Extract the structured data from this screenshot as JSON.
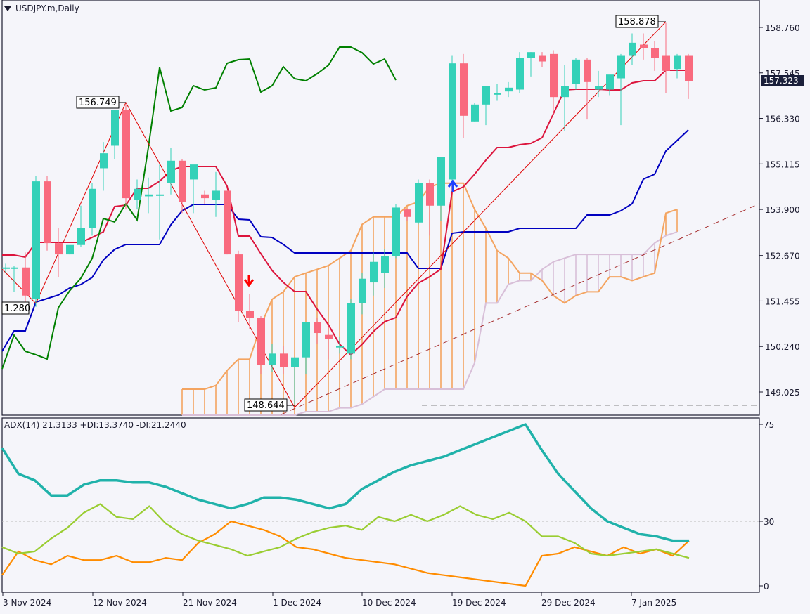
{
  "header": {
    "symbol_timeframe": "USDJPY.m,Daily",
    "menu_icon": "triangle-down-icon"
  },
  "price_axis": {
    "ticks": [
      "158.760",
      "157.545",
      "156.330",
      "155.115",
      "153.900",
      "152.670",
      "151.455",
      "150.240",
      "149.025"
    ],
    "current_price": "157.323"
  },
  "adx_panel": {
    "label": "ADX(14) 21.3133 +DI:13.3740 -DI:21.2440",
    "ticks": [
      "75",
      "30",
      "0"
    ]
  },
  "time_axis": {
    "labels": [
      "3 Nov 2024",
      "12 Nov 2024",
      "21 Nov 2024",
      "1 Dec 2024",
      "10 Dec 2024",
      "19 Dec 2024",
      "29 Dec 2024",
      "7 Jan 2025"
    ]
  },
  "annotations": {
    "high_label_1": "156.749",
    "low_label_1": "1.280",
    "low_label_2": "148.644",
    "high_label_2": "158.878"
  },
  "colors": {
    "bull": "#34d1b8",
    "bear": "#f96a7e",
    "tenkan": "#dc143c",
    "kijun": "#0000c0",
    "chikou": "#008000",
    "span_a": "#f4a460",
    "span_b": "#d8bfd8",
    "adx": "#20b2aa",
    "plus_di": "#9acd32",
    "minus_di": "#ff8c00",
    "zigzag": "#e00000",
    "trend": "#a52a2a"
  },
  "chart_data": [
    {
      "type": "candlestick",
      "title": "USDJPY.m,Daily",
      "ylim": [
        148.4,
        159.1
      ],
      "indicators": [
        "Ichimoku Kinko Hyo",
        "ZigZag",
        "Trendline"
      ],
      "x_labels": [
        "3 Nov 2024",
        "12 Nov 2024",
        "21 Nov 2024",
        "1 Dec 2024",
        "10 Dec 2024",
        "19 Dec 2024",
        "29 Dec 2024",
        "7 Jan 2025"
      ],
      "candles": [
        [
          8,
          152.35,
          152.45,
          152.2,
          152.35
        ],
        [
          20,
          152.35,
          152.4,
          151.7,
          152.35
        ],
        [
          36,
          152.35,
          152.75,
          151.4,
          151.6
        ],
        [
          51,
          151.5,
          154.8,
          151.3,
          154.65
        ],
        [
          67,
          154.65,
          154.8,
          152.8,
          153.0
        ],
        [
          83,
          153.0,
          153.4,
          152.1,
          152.7
        ],
        [
          99,
          152.7,
          152.9,
          152.7,
          152.95
        ],
        [
          115,
          152.95,
          154.0,
          152.9,
          153.4
        ],
        [
          131,
          153.4,
          154.6,
          153.2,
          154.45
        ],
        [
          147,
          155.0,
          155.7,
          154.4,
          155.4
        ],
        [
          163,
          155.6,
          156.1,
          155.25,
          156.55
        ],
        [
          179,
          156.55,
          156.7,
          153.9,
          154.2
        ],
        [
          195,
          154.15,
          154.7,
          153.9,
          154.45
        ],
        [
          211,
          154.25,
          154.75,
          153.8,
          154.3
        ],
        [
          227,
          154.3,
          155.1,
          153.1,
          154.3
        ],
        [
          243,
          154.6,
          155.55,
          154.3,
          155.2
        ],
        [
          259,
          155.2,
          155.25,
          153.8,
          154.1
        ],
        [
          275,
          154.7,
          155.0,
          153.8,
          155.1
        ],
        [
          291,
          154.3,
          154.4,
          154.05,
          154.2
        ],
        [
          307,
          154.15,
          154.9,
          153.7,
          154.4
        ],
        [
          323,
          154.4,
          154.4,
          152.7,
          152.7
        ],
        [
          339,
          152.7,
          152.8,
          150.9,
          151.2
        ],
        [
          355,
          151.2,
          151.65,
          150.7,
          151.0
        ],
        [
          371,
          151.0,
          151.05,
          149.5,
          149.75
        ],
        [
          387,
          149.75,
          150.3,
          149.55,
          150.05
        ],
        [
          403,
          150.05,
          150.25,
          149.5,
          149.7
        ],
        [
          419,
          149.7,
          149.8,
          148.7,
          149.95
        ],
        [
          435,
          149.95,
          150.9,
          149.5,
          150.9
        ],
        [
          451,
          150.9,
          151.0,
          150.3,
          150.6
        ],
        [
          467,
          150.55,
          150.8,
          149.9,
          150.45
        ],
        [
          483,
          150.25,
          150.5,
          150.05,
          150.25
        ],
        [
          499,
          150.05,
          151.5,
          149.9,
          151.4
        ],
        [
          515,
          151.4,
          152.2,
          151.1,
          152.05
        ],
        [
          531,
          151.95,
          152.75,
          151.6,
          152.5
        ],
        [
          547,
          152.2,
          152.85,
          151.8,
          152.65
        ],
        [
          563,
          152.65,
          154.05,
          152.6,
          153.95
        ],
        [
          579,
          153.9,
          153.8,
          153.6,
          153.7
        ],
        [
          595,
          153.55,
          154.7,
          153.5,
          154.6
        ],
        [
          611,
          154.6,
          154.7,
          153.2,
          154.0
        ],
        [
          627,
          154.0,
          155.1,
          153.6,
          155.3
        ],
        [
          643,
          154.7,
          158.0,
          154.6,
          157.8
        ],
        [
          659,
          157.8,
          158.05,
          155.8,
          156.4
        ],
        [
          675,
          156.25,
          156.75,
          156.25,
          156.7
        ],
        [
          691,
          156.7,
          157.2,
          156.15,
          157.2
        ],
        [
          707,
          157.0,
          157.25,
          156.8,
          157.0
        ],
        [
          723,
          157.05,
          157.3,
          156.9,
          157.15
        ],
        [
          739,
          157.1,
          158.1,
          157.0,
          157.95
        ],
        [
          755,
          157.95,
          158.1,
          157.45,
          158.1
        ],
        [
          771,
          158.0,
          158.1,
          157.7,
          157.85
        ],
        [
          787,
          158.05,
          158.15,
          156.45,
          156.9
        ],
        [
          803,
          156.9,
          157.75,
          156.0,
          157.2
        ],
        [
          819,
          157.25,
          157.95,
          157.1,
          157.9
        ],
        [
          835,
          157.9,
          157.95,
          156.3,
          157.3
        ],
        [
          851,
          157.1,
          157.6,
          156.9,
          157.2
        ],
        [
          867,
          157.1,
          157.4,
          156.95,
          157.5
        ],
        [
          883,
          157.4,
          158.05,
          156.15,
          158.0
        ],
        [
          899,
          158.0,
          158.6,
          157.75,
          158.35
        ],
        [
          915,
          158.3,
          158.6,
          157.9,
          158.2
        ],
        [
          931,
          158.2,
          158.4,
          157.6,
          157.95
        ],
        [
          947,
          158.0,
          158.88,
          157.0,
          157.6
        ],
        [
          963,
          157.65,
          158.05,
          157.4,
          158.0
        ],
        [
          979,
          158.0,
          158.05,
          156.85,
          157.32
        ]
      ]
    },
    {
      "type": "line",
      "title": "ADX(14)",
      "ylim": [
        0,
        75
      ],
      "series": [
        {
          "name": "ADX",
          "values": [
            64,
            52,
            49,
            42,
            42,
            47,
            49,
            49,
            48,
            48,
            46,
            43,
            40,
            38,
            36,
            38,
            41,
            41,
            40,
            38,
            36,
            38,
            45,
            49,
            53,
            56,
            58,
            60,
            63,
            66,
            69,
            72,
            75,
            63,
            52,
            44,
            36,
            30,
            27,
            24,
            23,
            21,
            21
          ]
        },
        {
          "name": "+DI",
          "values": [
            18,
            15,
            16,
            22,
            27,
            34,
            38,
            32,
            31,
            37,
            29,
            24,
            21,
            19,
            17,
            14,
            16,
            18,
            22,
            25,
            27,
            28,
            26,
            32,
            30,
            33,
            30,
            33,
            37,
            33,
            31,
            34,
            30,
            23,
            23,
            20,
            15,
            14,
            15,
            16,
            17,
            15,
            13
          ]
        },
        {
          "name": "-DI",
          "values": [
            5,
            16,
            12,
            10,
            14,
            12,
            12,
            14,
            11,
            11,
            13,
            12,
            20,
            24,
            30,
            28,
            26,
            23,
            18,
            17,
            15,
            13,
            12,
            11,
            10,
            8,
            6,
            5,
            4,
            3,
            2,
            1,
            0,
            14,
            15,
            18,
            16,
            14,
            18,
            15,
            17,
            14,
            21
          ]
        }
      ],
      "reference_line": 30
    }
  ]
}
